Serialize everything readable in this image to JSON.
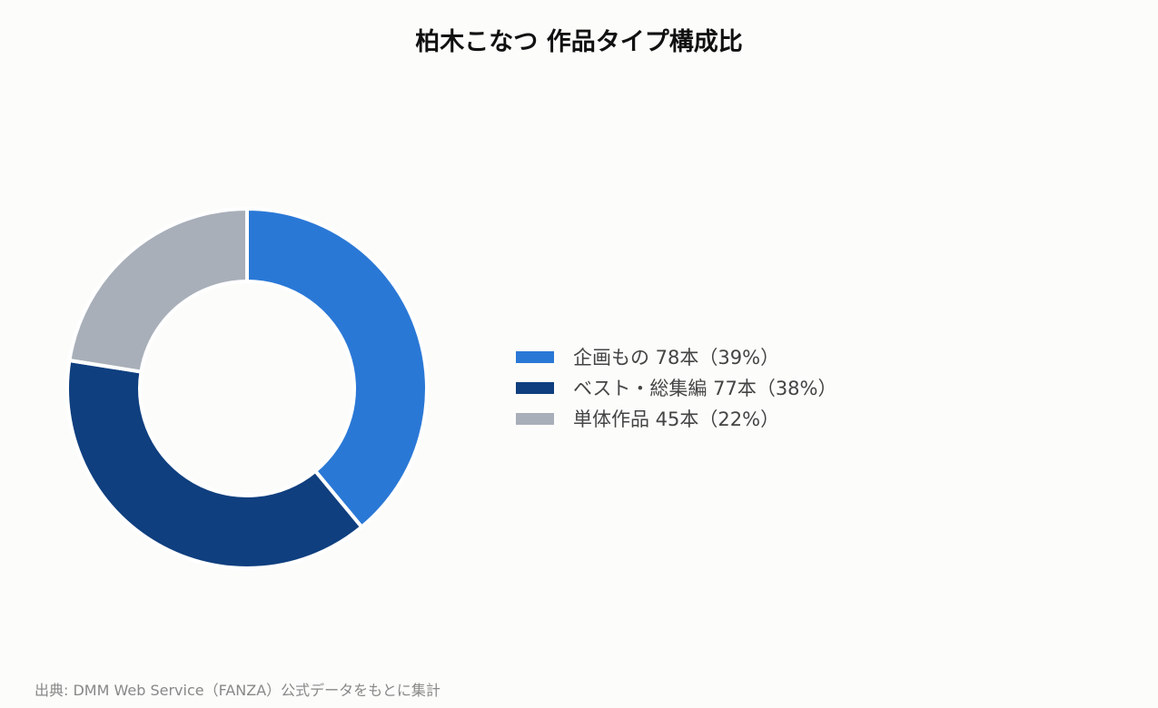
{
  "chart_data": {
    "type": "pie",
    "title": "柏木こなつ 作品タイプ構成比",
    "categories": [
      "企画もの",
      "ベスト・総集編",
      "単体作品"
    ],
    "values": [
      78,
      77,
      45
    ],
    "percent_labels": [
      "39%",
      "38%",
      "22%"
    ],
    "legend_labels": [
      "企画もの 78本（39%）",
      "ベスト・総集編 77本（38%）",
      "単体作品 45本（22%）"
    ],
    "colors": [
      "#2a78d6",
      "#0f3f7f",
      "#a8afb9"
    ],
    "legend_position": "right",
    "donut": true
  },
  "source": "出典: DMM Web Service（FANZA）公式データをもとに集計"
}
